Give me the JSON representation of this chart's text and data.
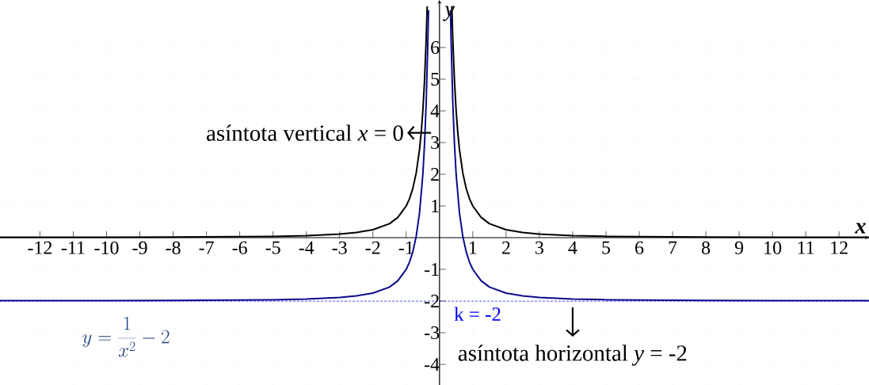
{
  "chart_data": {
    "type": "line",
    "xlabel": "x",
    "ylabel": "y",
    "xlim": [
      -13.2,
      12.9
    ],
    "ylim": [
      -4.65,
      7.5
    ],
    "xticks": [
      -12,
      -11,
      -10,
      -9,
      -8,
      -7,
      -6,
      -5,
      -4,
      -3,
      -2,
      -1,
      1,
      2,
      3,
      4,
      5,
      6,
      7,
      8,
      9,
      10,
      11,
      12
    ],
    "yticks": [
      -4,
      -3,
      -2,
      -1,
      1,
      2,
      3,
      4,
      5,
      6
    ],
    "grid": true,
    "marker": "none",
    "line_style": "solid",
    "series": [
      {
        "color": "#000000",
        "x": [
          -13.2,
          -12,
          -10,
          -8,
          -6,
          -5,
          -4,
          -3,
          -2.5,
          -2,
          -1.5,
          -1.25,
          -1,
          -0.9,
          -0.8,
          -0.7,
          -0.6,
          -0.55,
          -0.5,
          -0.45,
          -0.4,
          -0.37,
          0,
          0.37,
          0.4,
          0.45,
          0.5,
          0.55,
          0.6,
          0.7,
          0.8,
          0.9,
          1,
          1.25,
          1.5,
          2,
          2.5,
          3,
          4,
          5,
          6,
          8,
          10,
          12,
          12.9
        ],
        "values": [
          0.01,
          0.01,
          0.01,
          0.02,
          0.03,
          0.04,
          0.06,
          0.11,
          0.16,
          0.25,
          0.44,
          0.64,
          1,
          1.23,
          1.56,
          2.04,
          2.78,
          3.31,
          4,
          4.94,
          6.25,
          7.3,
          null,
          7.3,
          6.25,
          4.94,
          4,
          3.31,
          2.78,
          2.04,
          1.56,
          1.23,
          1,
          0.64,
          0.44,
          0.25,
          0.16,
          0.11,
          0.06,
          0.04,
          0.03,
          0.02,
          0.01,
          0.01,
          0.01
        ]
      },
      {
        "color": "#0a0a8c",
        "x": [
          -13.2,
          -12,
          -10,
          -8,
          -6,
          -5,
          -4,
          -3,
          -2.5,
          -2,
          -1.5,
          -1.25,
          -1,
          -0.9,
          -0.8,
          -0.7,
          -0.6,
          -0.5,
          -0.45,
          -0.4,
          -0.35,
          -0.33,
          0,
          0.33,
          0.35,
          0.4,
          0.45,
          0.5,
          0.6,
          0.7,
          0.8,
          0.9,
          1,
          1.25,
          1.5,
          2,
          2.5,
          3,
          4,
          5,
          6,
          8,
          10,
          12,
          12.9
        ],
        "values": [
          -1.99,
          -1.99,
          -1.99,
          -1.98,
          -1.97,
          -1.96,
          -1.94,
          -1.89,
          -1.84,
          -1.75,
          -1.56,
          -1.36,
          -1,
          -0.77,
          -0.44,
          0.04,
          0.78,
          2,
          2.94,
          4.25,
          6.16,
          7.18,
          null,
          7.18,
          6.16,
          4.25,
          2.94,
          2,
          0.78,
          0.04,
          -0.44,
          -0.77,
          -1,
          -1.36,
          -1.56,
          -1.75,
          -1.84,
          -1.89,
          -1.94,
          -1.96,
          -1.97,
          -1.98,
          -1.99,
          -1.99,
          -1.99
        ]
      }
    ],
    "ref_lines": [
      {
        "axis": "y",
        "value": -2,
        "label": "k = -2",
        "color": "#0000ff",
        "line_style": "dashed"
      }
    ],
    "annotations": [
      "asíntota vertical *x* = 0",
      {
        "text": "asíntota horizontal *y* = -2",
        "x": 4,
        "y": -2
      },
      "y=\\frac{1}{x^{2}}-2"
    ]
  }
}
